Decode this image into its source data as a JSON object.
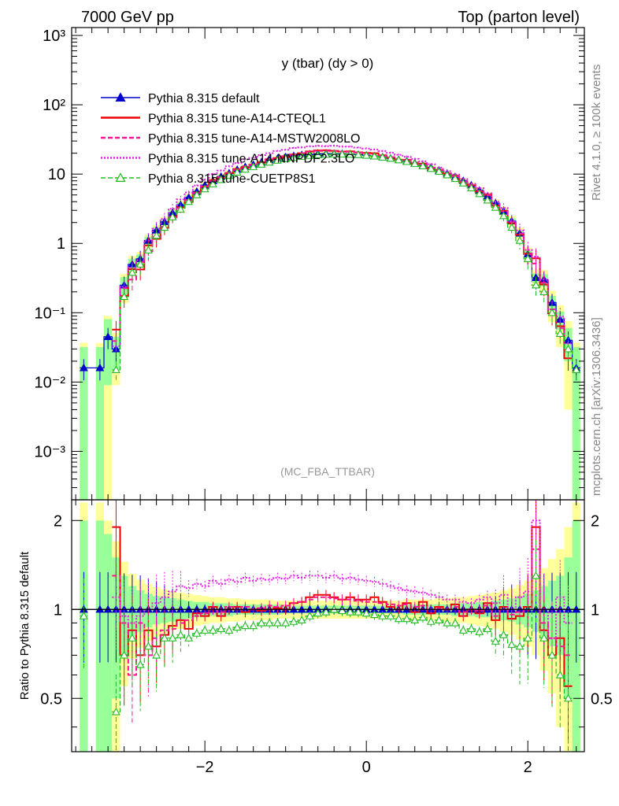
{
  "header": {
    "left": "7000 GeV pp",
    "right": "Top (parton level)"
  },
  "side_labels": {
    "rivet": "Rivet 4.1.0, ≥ 100k events",
    "mcplots": "mcplots.cern.ch [arXiv:1306.3436]"
  },
  "chart_data": {
    "type": "line",
    "title": "y (tbar) (dy > 0)",
    "analysis": "(MC_FBA_TTBAR)",
    "xlabel": "",
    "ylabel_main": "",
    "ylabel_ratio": "Ratio to Pythia 8.315 default",
    "xlim": [
      -3.65,
      2.7
    ],
    "ylim_main": [
      0.0002,
      1300
    ],
    "yscale_main": "log",
    "ylim_ratio": [
      0.33,
      2.35
    ],
    "yscale_ratio": "log",
    "x_ticks": [
      -2,
      0,
      2
    ],
    "x_tick_labels": [
      "−2",
      "0",
      "2"
    ],
    "y_ticks_main": [
      0.001,
      0.01,
      0.1,
      1,
      10,
      100,
      1000
    ],
    "y_tick_labels_main": [
      "10⁻³",
      "10⁻²",
      "10⁻¹",
      "1",
      "10",
      "10²",
      "10³"
    ],
    "y_ticks_ratio": [
      0.5,
      1,
      2
    ],
    "y_tick_labels_ratio": [
      "0.5",
      "1",
      "2"
    ],
    "legend": [
      {
        "label": "Pythia 8.315 default",
        "color": "#0000cc",
        "style": "solid-triangle"
      },
      {
        "label": "Pythia 8.315 tune-A14-CTEQL1",
        "color": "#ee0000",
        "style": "solid"
      },
      {
        "label": "Pythia 8.315 tune-A14-MSTW2008LO",
        "color": "#ff1493",
        "style": "dashed"
      },
      {
        "label": "Pythia 8.315 tune-A14-NNPDF2.3LO",
        "color": "#e020e0",
        "style": "dotted"
      },
      {
        "label": "Pythia 8.315 tune-CUETP8S1",
        "color": "#22bb22",
        "style": "dashed-open-triangle"
      }
    ],
    "x": [
      -3.5,
      -3.3,
      -3.2,
      -3.1,
      -3.0,
      -2.9,
      -2.8,
      -2.7,
      -2.6,
      -2.5,
      -2.4,
      -2.3,
      -2.2,
      -2.1,
      -2.0,
      -1.9,
      -1.8,
      -1.7,
      -1.6,
      -1.5,
      -1.4,
      -1.3,
      -1.2,
      -1.1,
      -1.0,
      -0.9,
      -0.8,
      -0.7,
      -0.6,
      -0.5,
      -0.4,
      -0.3,
      -0.2,
      -0.1,
      0.0,
      0.1,
      0.2,
      0.3,
      0.4,
      0.5,
      0.6,
      0.7,
      0.8,
      0.9,
      1.0,
      1.1,
      1.2,
      1.3,
      1.4,
      1.5,
      1.6,
      1.7,
      1.8,
      1.9,
      2.0,
      2.1,
      2.2,
      2.3,
      2.4,
      2.5,
      2.6
    ],
    "series": [
      {
        "name": "Pythia 8.315 default",
        "values": [
          0.016,
          0.016,
          0.045,
          0.03,
          0.25,
          0.5,
          0.6,
          1.1,
          1.55,
          2.05,
          2.75,
          3.6,
          4.6,
          5.6,
          6.9,
          8.0,
          9.2,
          10.3,
          11.6,
          12.7,
          13.7,
          14.8,
          15.9,
          16.8,
          17.6,
          18.3,
          18.9,
          19.3,
          19.6,
          19.7,
          19.7,
          19.6,
          19.4,
          19.1,
          18.7,
          18.2,
          17.6,
          16.9,
          16.1,
          15.3,
          14.4,
          13.4,
          12.4,
          11.3,
          10.2,
          9.1,
          8.0,
          6.9,
          5.8,
          4.8,
          3.8,
          2.9,
          2.1,
          1.4,
          0.7,
          0.32,
          0.3,
          0.14,
          0.08,
          0.04,
          0.016
        ],
        "ratio": [
          1,
          1,
          1,
          1,
          1,
          1,
          1,
          1,
          1,
          1,
          1,
          1,
          1,
          1,
          1,
          1,
          1,
          1,
          1,
          1,
          1,
          1,
          1,
          1,
          1,
          1,
          1,
          1,
          1,
          1,
          1,
          1,
          1,
          1,
          1,
          1,
          1,
          1,
          1,
          1,
          1,
          1,
          1,
          1,
          1,
          1,
          1,
          1,
          1,
          1,
          1,
          1,
          1,
          1,
          1,
          1,
          1,
          1,
          1,
          1,
          1
        ]
      },
      {
        "name": "Pythia 8.315 tune-A14-CTEQL1",
        "ratio": [
          null,
          null,
          null,
          1.9,
          0.7,
          0.85,
          0.7,
          0.85,
          0.75,
          0.82,
          0.88,
          0.92,
          0.86,
          0.97,
          0.95,
          1.02,
          0.95,
          1.0,
          1.02,
          0.98,
          1.0,
          0.99,
          1.0,
          1.01,
          1.0,
          1.05,
          1.06,
          1.1,
          1.12,
          1.12,
          1.1,
          1.08,
          1.1,
          1.08,
          1.08,
          1.1,
          1.06,
          1.02,
          1.0,
          1.05,
          0.98,
          1.06,
          0.97,
          1.02,
          1.0,
          1.04,
          0.95,
          1.0,
          0.97,
          1.05,
          0.92,
          1.02,
          0.93,
          0.95,
          1.02,
          1.9,
          0.85,
          0.7,
          0.8,
          0.55,
          null
        ]
      },
      {
        "name": "Pythia 8.315 tune-A14-MSTW2008LO",
        "ratio": [
          null,
          null,
          null,
          1.3,
          0.9,
          0.6,
          0.9,
          0.7,
          0.8,
          0.85,
          0.86,
          0.9,
          0.92,
          0.95,
          0.97,
          1.0,
          0.98,
          1.02,
          1.0,
          1.02,
          1.0,
          1.01,
          1.03,
          1.02,
          1.03,
          1.05,
          1.06,
          1.08,
          1.1,
          1.1,
          1.09,
          1.08,
          1.08,
          1.07,
          1.06,
          1.06,
          1.05,
          1.04,
          1.03,
          1.04,
          1.02,
          1.03,
          1.0,
          1.01,
          1.0,
          1.02,
          0.98,
          1.0,
          0.99,
          1.03,
          0.95,
          1.0,
          0.96,
          0.98,
          1.0,
          1.6,
          0.9,
          0.8,
          0.75,
          0.7,
          null
        ]
      },
      {
        "name": "Pythia 8.315 tune-A14-NNPDF2.3LO",
        "ratio": [
          null,
          null,
          null,
          1.1,
          0.95,
          0.9,
          0.95,
          1.0,
          1.05,
          1.1,
          1.15,
          1.2,
          1.18,
          1.22,
          1.2,
          1.25,
          1.22,
          1.26,
          1.24,
          1.28,
          1.25,
          1.27,
          1.26,
          1.28,
          1.27,
          1.3,
          1.28,
          1.3,
          1.3,
          1.28,
          1.3,
          1.27,
          1.28,
          1.26,
          1.25,
          1.24,
          1.22,
          1.2,
          1.18,
          1.16,
          1.15,
          1.14,
          1.12,
          1.1,
          1.08,
          1.08,
          1.06,
          1.05,
          1.08,
          1.1,
          1.05,
          1.12,
          1.0,
          1.1,
          1.15,
          2.0,
          1.0,
          0.8,
          1.1,
          0.9,
          null
        ]
      },
      {
        "name": "Pythia 8.315 tune-CUETP8S1",
        "values": [
          null,
          null,
          null,
          0.015,
          0.17,
          0.38,
          0.5,
          0.8,
          1.3,
          1.7,
          2.4,
          3.1,
          4.0,
          5.0,
          6.1,
          7.2,
          8.3,
          9.5,
          10.6,
          11.7,
          12.7,
          13.8,
          14.8,
          15.8,
          16.6,
          17.3,
          17.9,
          18.5,
          18.9,
          19.2,
          19.3,
          19.3,
          19.2,
          19.0,
          18.6,
          18.1,
          17.5,
          16.8,
          16.0,
          15.1,
          14.1,
          13.1,
          12.0,
          10.9,
          9.7,
          8.6,
          7.4,
          6.3,
          5.2,
          4.2,
          3.3,
          2.5,
          1.7,
          1.1,
          0.6,
          0.25,
          0.2,
          0.1,
          0.05,
          0.03,
          0.015
        ],
        "ratio": [
          0.95,
          null,
          null,
          0.45,
          0.7,
          0.8,
          0.65,
          0.75,
          0.7,
          0.8,
          0.8,
          0.82,
          0.8,
          0.83,
          0.85,
          0.85,
          0.86,
          0.85,
          0.87,
          0.88,
          0.88,
          0.9,
          0.9,
          0.9,
          0.9,
          0.91,
          0.92,
          0.95,
          0.97,
          0.98,
          1.0,
          0.99,
          0.98,
          0.98,
          0.97,
          0.96,
          0.95,
          0.95,
          0.93,
          0.93,
          0.92,
          0.94,
          0.91,
          0.92,
          0.9,
          0.9,
          0.85,
          0.86,
          0.84,
          0.86,
          0.78,
          0.82,
          0.76,
          0.75,
          0.8,
          1.3,
          0.8,
          0.7,
          0.6,
          0.5,
          null
        ]
      }
    ],
    "uncertainty_band": {
      "inner_color": "#99ff99",
      "outer_color": "#ffff99",
      "inner_halfwidth": [
        1.0,
        1.0,
        0.8,
        0.5,
        0.3,
        0.2,
        0.16,
        0.13,
        0.11,
        0.1,
        0.09,
        0.08,
        0.07,
        0.06,
        0.06,
        0.05,
        0.05,
        0.05,
        0.04,
        0.04,
        0.04,
        0.04,
        0.04,
        0.04,
        0.03,
        0.03,
        0.03,
        0.03,
        0.03,
        0.03,
        0.03,
        0.03,
        0.03,
        0.03,
        0.03,
        0.03,
        0.03,
        0.03,
        0.03,
        0.04,
        0.04,
        0.04,
        0.04,
        0.04,
        0.04,
        0.05,
        0.05,
        0.05,
        0.06,
        0.06,
        0.07,
        0.08,
        0.09,
        0.11,
        0.13,
        0.16,
        0.2,
        0.25,
        0.3,
        0.5,
        1.0
      ],
      "outer_halfwidth": [
        1.3,
        1.3,
        1.0,
        0.7,
        0.45,
        0.32,
        0.26,
        0.22,
        0.19,
        0.17,
        0.15,
        0.14,
        0.13,
        0.12,
        0.11,
        0.1,
        0.1,
        0.09,
        0.09,
        0.08,
        0.08,
        0.08,
        0.08,
        0.07,
        0.07,
        0.07,
        0.07,
        0.07,
        0.07,
        0.07,
        0.07,
        0.07,
        0.07,
        0.07,
        0.07,
        0.07,
        0.07,
        0.07,
        0.07,
        0.08,
        0.08,
        0.08,
        0.08,
        0.09,
        0.09,
        0.1,
        0.1,
        0.11,
        0.12,
        0.13,
        0.14,
        0.16,
        0.18,
        0.21,
        0.25,
        0.3,
        0.38,
        0.48,
        0.6,
        0.9,
        1.3
      ]
    }
  }
}
